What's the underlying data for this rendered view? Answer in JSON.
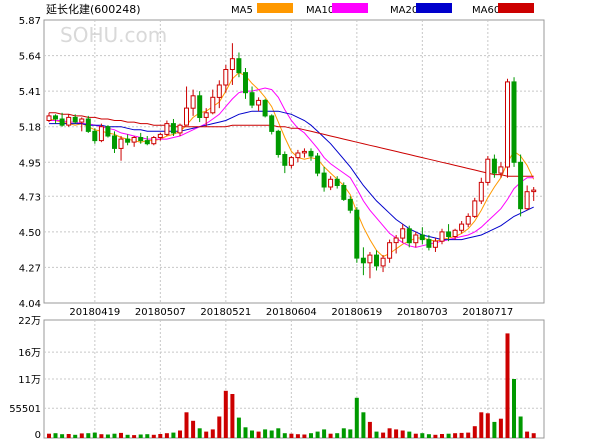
{
  "watermark": "SOHU.com",
  "chart_data": {
    "type": "candlestick",
    "title": "延长化建",
    "code": "(600248)",
    "legend": [
      {
        "label": "MA5",
        "color": "#ff9900"
      },
      {
        "label": "MA10",
        "color": "#ff00ff"
      },
      {
        "label": "MA20",
        "color": "#0000cc"
      },
      {
        "label": "MA60",
        "color": "#cc0000"
      }
    ],
    "up_color": "#cc0000",
    "down_color": "#009900",
    "price_axis": {
      "ticks": [
        "5.87",
        "5.64",
        "5.41",
        "5.18",
        "4.95",
        "4.73",
        "4.50",
        "4.27",
        "4.04"
      ],
      "ylim": [
        4.04,
        5.87
      ]
    },
    "volume_axis": {
      "ticks": [
        "22万",
        "16万",
        "11万",
        "55501",
        "0"
      ],
      "ylim": [
        0,
        220000
      ]
    },
    "x_tick_labels": [
      "20180419",
      "20180507",
      "20180521",
      "20180604",
      "20180619",
      "20180703",
      "20180717"
    ],
    "ohlc": [
      [
        5.22,
        5.27,
        5.21,
        5.25
      ],
      [
        5.25,
        5.26,
        5.2,
        5.23
      ],
      [
        5.23,
        5.27,
        5.18,
        5.19
      ],
      [
        5.19,
        5.26,
        5.18,
        5.24
      ],
      [
        5.24,
        5.26,
        5.2,
        5.21
      ],
      [
        5.21,
        5.24,
        5.15,
        5.23
      ],
      [
        5.23,
        5.25,
        5.14,
        5.15
      ],
      [
        5.15,
        5.17,
        5.07,
        5.09
      ],
      [
        5.09,
        5.2,
        5.08,
        5.18
      ],
      [
        5.18,
        5.19,
        5.11,
        5.12
      ],
      [
        5.12,
        5.15,
        5.01,
        5.04
      ],
      [
        5.04,
        5.12,
        4.96,
        5.1
      ],
      [
        5.1,
        5.13,
        5.06,
        5.08
      ],
      [
        5.08,
        5.12,
        5.05,
        5.11
      ],
      [
        5.11,
        5.14,
        5.07,
        5.09
      ],
      [
        5.09,
        5.12,
        5.06,
        5.07
      ],
      [
        5.07,
        5.12,
        5.06,
        5.11
      ],
      [
        5.11,
        5.14,
        5.09,
        5.13
      ],
      [
        5.13,
        5.22,
        5.12,
        5.2
      ],
      [
        5.2,
        5.23,
        5.12,
        5.14
      ],
      [
        5.14,
        5.2,
        5.12,
        5.19
      ],
      [
        5.19,
        5.44,
        5.19,
        5.3
      ],
      [
        5.3,
        5.42,
        5.25,
        5.38
      ],
      [
        5.38,
        5.41,
        5.21,
        5.24
      ],
      [
        5.24,
        5.3,
        5.18,
        5.27
      ],
      [
        5.27,
        5.42,
        5.26,
        5.37
      ],
      [
        5.37,
        5.48,
        5.3,
        5.45
      ],
      [
        5.45,
        5.58,
        5.4,
        5.55
      ],
      [
        5.55,
        5.72,
        5.45,
        5.62
      ],
      [
        5.62,
        5.66,
        5.5,
        5.53
      ],
      [
        5.53,
        5.56,
        5.36,
        5.4
      ],
      [
        5.4,
        5.44,
        5.3,
        5.32
      ],
      [
        5.32,
        5.37,
        5.28,
        5.35
      ],
      [
        5.35,
        5.36,
        5.24,
        5.25
      ],
      [
        5.25,
        5.26,
        5.13,
        5.15
      ],
      [
        5.15,
        5.16,
        4.98,
        5.0
      ],
      [
        5.0,
        5.02,
        4.88,
        4.93
      ],
      [
        4.93,
        4.99,
        4.91,
        4.98
      ],
      [
        4.98,
        5.03,
        4.95,
        5.01
      ],
      [
        5.01,
        5.04,
        4.98,
        5.02
      ],
      [
        5.02,
        5.04,
        4.96,
        4.99
      ],
      [
        4.99,
        5.01,
        4.86,
        4.88
      ],
      [
        4.88,
        4.92,
        4.76,
        4.79
      ],
      [
        4.79,
        4.86,
        4.77,
        4.84
      ],
      [
        4.84,
        4.86,
        4.78,
        4.8
      ],
      [
        4.8,
        4.82,
        4.7,
        4.71
      ],
      [
        4.71,
        4.73,
        4.62,
        4.64
      ],
      [
        4.64,
        4.66,
        4.3,
        4.33
      ],
      [
        4.33,
        4.4,
        4.22,
        4.3
      ],
      [
        4.3,
        4.37,
        4.2,
        4.35
      ],
      [
        4.35,
        4.38,
        4.25,
        4.28
      ],
      [
        4.28,
        4.35,
        4.24,
        4.33
      ],
      [
        4.33,
        4.45,
        4.3,
        4.43
      ],
      [
        4.43,
        4.48,
        4.36,
        4.46
      ],
      [
        4.46,
        4.55,
        4.43,
        4.52
      ],
      [
        4.52,
        4.54,
        4.4,
        4.43
      ],
      [
        4.43,
        4.5,
        4.4,
        4.48
      ],
      [
        4.48,
        4.53,
        4.42,
        4.45
      ],
      [
        4.45,
        4.48,
        4.38,
        4.4
      ],
      [
        4.4,
        4.46,
        4.37,
        4.44
      ],
      [
        4.44,
        4.52,
        4.42,
        4.5
      ],
      [
        4.5,
        4.55,
        4.44,
        4.47
      ],
      [
        4.47,
        4.52,
        4.45,
        4.51
      ],
      [
        4.51,
        4.57,
        4.49,
        4.55
      ],
      [
        4.55,
        4.62,
        4.53,
        4.6
      ],
      [
        4.6,
        4.72,
        4.59,
        4.7
      ],
      [
        4.7,
        4.85,
        4.68,
        4.82
      ],
      [
        4.82,
        4.99,
        4.8,
        4.97
      ],
      [
        4.97,
        5.0,
        4.85,
        4.88
      ],
      [
        4.88,
        4.95,
        4.85,
        4.92
      ],
      [
        4.92,
        5.49,
        4.85,
        5.47
      ],
      [
        5.47,
        5.5,
        4.92,
        4.95
      ],
      [
        4.95,
        5.0,
        4.6,
        4.65
      ],
      [
        4.65,
        4.8,
        4.64,
        4.76
      ],
      [
        4.76,
        4.79,
        4.7,
        4.77
      ]
    ],
    "volume": [
      8000,
      9000,
      7000,
      7500,
      6000,
      8500,
      9000,
      10000,
      7000,
      6500,
      8000,
      9500,
      6000,
      5500,
      6500,
      7000,
      6000,
      7500,
      9000,
      10000,
      14000,
      48000,
      32000,
      18000,
      12000,
      16000,
      40000,
      88000,
      82000,
      38000,
      20000,
      14000,
      12000,
      16000,
      14000,
      18000,
      9000,
      8000,
      7000,
      6500,
      9000,
      12000,
      16000,
      8000,
      9000,
      18000,
      16000,
      75000,
      48000,
      30000,
      12000,
      10000,
      18000,
      16000,
      14000,
      12000,
      8000,
      9000,
      7000,
      6000,
      7500,
      8000,
      9000,
      9500,
      10000,
      22000,
      48000,
      46000,
      30000,
      36000,
      195000,
      110000,
      40000,
      12000,
      9000
    ],
    "moving_averages": {
      "MA5": [
        5.23,
        5.22,
        5.21,
        5.2,
        5.19,
        5.2,
        5.18,
        5.16,
        5.15,
        5.14,
        5.13,
        5.11,
        5.1,
        5.09,
        5.08,
        5.09,
        5.09,
        5.1,
        5.12,
        5.13,
        5.15,
        5.19,
        5.24,
        5.27,
        5.28,
        5.31,
        5.34,
        5.41,
        5.49,
        5.53,
        5.51,
        5.46,
        5.42,
        5.37,
        5.31,
        5.21,
        5.11,
        5.02,
        4.98,
        4.97,
        4.98,
        4.97,
        4.92,
        4.88,
        4.84,
        4.8,
        4.74,
        4.63,
        4.53,
        4.45,
        4.38,
        4.34,
        4.36,
        4.39,
        4.42,
        4.44,
        4.46,
        4.46,
        4.45,
        4.44,
        4.45,
        4.46,
        4.47,
        4.49,
        4.52,
        4.57,
        4.64,
        4.72,
        4.79,
        4.85,
        4.95,
        5.02,
        4.99,
        4.93,
        4.84
      ],
      "MA10": [
        5.22,
        5.22,
        5.22,
        5.21,
        5.21,
        5.2,
        5.2,
        5.19,
        5.18,
        5.17,
        5.16,
        5.14,
        5.13,
        5.12,
        5.11,
        5.1,
        5.1,
        5.1,
        5.1,
        5.11,
        5.12,
        5.14,
        5.16,
        5.18,
        5.2,
        5.23,
        5.26,
        5.31,
        5.36,
        5.4,
        5.41,
        5.41,
        5.42,
        5.43,
        5.42,
        5.37,
        5.29,
        5.22,
        5.17,
        5.14,
        5.09,
        5.04,
        4.98,
        4.94,
        4.91,
        4.88,
        4.85,
        4.78,
        4.7,
        4.64,
        4.59,
        4.54,
        4.49,
        4.46,
        4.43,
        4.41,
        4.4,
        4.41,
        4.42,
        4.43,
        4.44,
        4.45,
        4.46,
        4.47,
        4.48,
        4.5,
        4.53,
        4.57,
        4.61,
        4.65,
        4.71,
        4.78,
        4.82,
        4.85,
        4.85
      ],
      "MA20": [
        5.2,
        5.2,
        5.2,
        5.2,
        5.2,
        5.2,
        5.19,
        5.19,
        5.19,
        5.18,
        5.18,
        5.18,
        5.17,
        5.16,
        5.16,
        5.15,
        5.15,
        5.15,
        5.15,
        5.15,
        5.15,
        5.16,
        5.17,
        5.18,
        5.19,
        5.2,
        5.21,
        5.22,
        5.24,
        5.26,
        5.27,
        5.28,
        5.28,
        5.28,
        5.28,
        5.28,
        5.27,
        5.26,
        5.24,
        5.22,
        5.19,
        5.15,
        5.11,
        5.07,
        5.02,
        4.97,
        4.92,
        4.86,
        4.8,
        4.75,
        4.7,
        4.66,
        4.62,
        4.58,
        4.55,
        4.52,
        4.5,
        4.48,
        4.47,
        4.46,
        4.45,
        4.45,
        4.45,
        4.45,
        4.46,
        4.47,
        4.48,
        4.5,
        4.52,
        4.54,
        4.57,
        4.6,
        4.62,
        4.64,
        4.66
      ],
      "MA60": [
        5.27,
        5.27,
        5.26,
        5.26,
        5.25,
        5.25,
        5.24,
        5.24,
        5.23,
        5.23,
        5.22,
        5.22,
        5.21,
        5.21,
        5.2,
        5.2,
        5.19,
        5.19,
        5.19,
        5.18,
        5.18,
        5.18,
        5.18,
        5.18,
        5.18,
        5.18,
        5.18,
        5.18,
        5.19,
        5.19,
        5.19,
        5.19,
        5.19,
        5.19,
        5.19,
        5.18,
        5.18,
        5.17,
        5.17,
        5.16,
        5.15,
        5.14,
        5.13,
        5.12,
        5.11,
        5.1,
        5.09,
        5.08,
        5.07,
        5.06,
        5.05,
        5.04,
        5.03,
        5.02,
        5.01,
        5.0,
        4.99,
        4.98,
        4.97,
        4.96,
        4.95,
        4.94,
        4.93,
        4.92,
        4.91,
        4.9,
        4.89,
        4.88,
        4.87,
        4.87,
        4.86,
        4.86,
        4.86,
        4.86,
        4.86
      ]
    }
  }
}
